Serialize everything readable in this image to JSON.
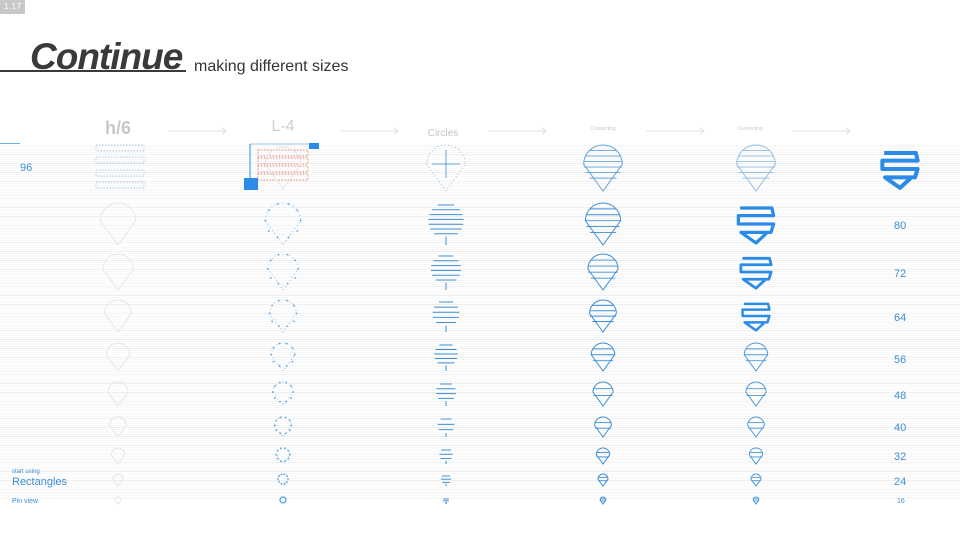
{
  "slide": {
    "number": "1.17"
  },
  "header": {
    "title": "Continue",
    "subtitle": "making different sizes"
  },
  "columns": {
    "col1": "h/6",
    "col2": "L-4",
    "col3": "Circles",
    "col4": "Connecting",
    "col5": "Connecting"
  },
  "sizes": {
    "top": "96",
    "rows": [
      "80",
      "72",
      "64",
      "56",
      "48",
      "40",
      "32",
      "24",
      "16"
    ]
  },
  "side": {
    "start_using_small": "start using",
    "rectangles": "Rectangles",
    "pin_view": "Pin view"
  },
  "colors": {
    "accent": "#2a8ce8",
    "faint": "#d8dde2",
    "guide": "#e6e6e6",
    "red": "#e05a4a"
  }
}
